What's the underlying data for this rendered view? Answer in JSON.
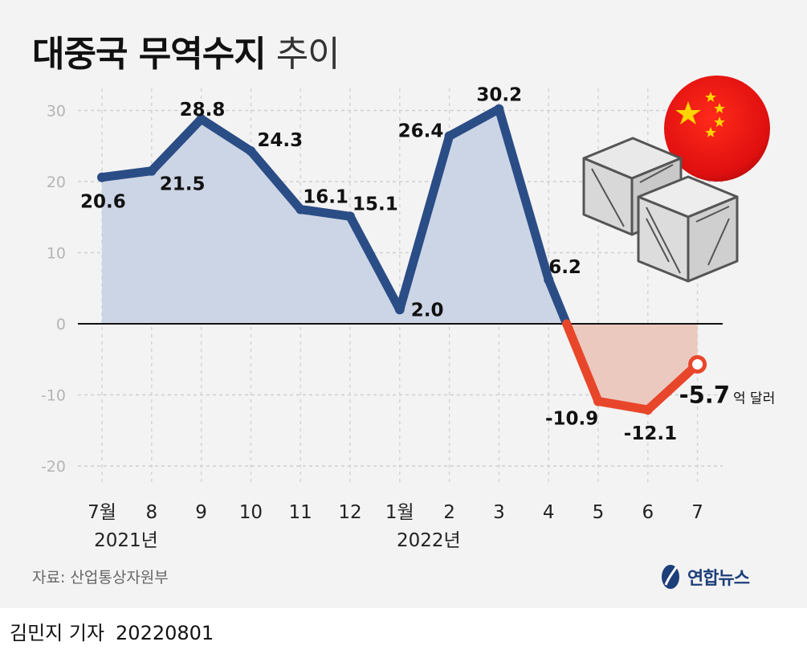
{
  "header": {
    "title_bold": "대중국 무역수지",
    "title_light": "추이"
  },
  "chart_data": {
    "type": "line",
    "title": "대중국 무역수지 추이",
    "unit": "억 달러",
    "x": [
      "7월",
      "8",
      "9",
      "10",
      "11",
      "12",
      "1월",
      "2",
      "3",
      "4",
      "5",
      "6",
      "7"
    ],
    "year_labels": [
      {
        "label": "2021년",
        "at": "7월"
      },
      {
        "label": "2022년",
        "at": "1월"
      }
    ],
    "series": [
      {
        "values": [
          20.6,
          21.5,
          28.8,
          24.3,
          16.1,
          15.1,
          2.0,
          26.4,
          30.2,
          6.2,
          -10.9,
          -12.1,
          -5.7
        ],
        "labels": [
          "20.6",
          "21.5",
          "28.8",
          "24.3",
          "16.1",
          "15.1",
          "2.0",
          "26.4",
          "30.2",
          "6.2",
          "-10.9",
          "-12.1",
          "-5.7"
        ]
      }
    ],
    "yticks": [
      "30",
      "20",
      "10",
      "0",
      "-10",
      "-20"
    ],
    "ylim": [
      -22,
      33
    ],
    "grid": true,
    "colors": {
      "positive_line": "#2b4d86",
      "positive_fill": "#ccd5e6",
      "negative_line": "#e8462b",
      "negative_fill": "#ecc9bf"
    }
  },
  "footer": {
    "source": "자료: 산업통상자원부",
    "logo_text": "연합뉴스",
    "reporter": "김민지 기자",
    "date": "20220801"
  },
  "icons": [
    "china-flag-icon",
    "cargo-crate-icon",
    "yonhap-logo-icon"
  ]
}
